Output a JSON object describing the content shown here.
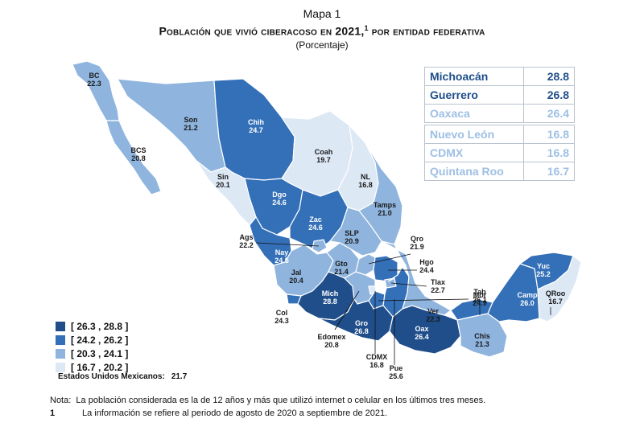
{
  "header": {
    "map_label": "Mapa 1",
    "title": "Población que vivió ciberacoso en 2021,",
    "title_sup": "1",
    "title_tail": " por entidad federativa",
    "subtitle": "(Porcentaje)"
  },
  "colors": {
    "q1": "#1f4e8a",
    "q2": "#3470b8",
    "q3": "#8fb4de",
    "q4": "#dde8f5",
    "top_text": "#1f4e8a",
    "bottom_text": "#9dbfe4"
  },
  "ranking": {
    "top": [
      {
        "name": "Michoacán",
        "value": "28.8"
      },
      {
        "name": "Guerrero",
        "value": "26.8"
      },
      {
        "name": "Oaxaca",
        "value": "26.4"
      }
    ],
    "bottom": [
      {
        "name": "Nuevo León",
        "value": "16.8"
      },
      {
        "name": "CDMX",
        "value": "16.8"
      },
      {
        "name": "Quintana Roo",
        "value": "16.7"
      }
    ]
  },
  "legend": [
    {
      "label": "[ 26.3 , 28.8 ]",
      "color_key": "q1"
    },
    {
      "label": "[ 24.2 , 26.2 ]",
      "color_key": "q2"
    },
    {
      "label": "[ 20.3 , 24.1 ]",
      "color_key": "q3"
    },
    {
      "label": "[ 16.7 , 20.2 ]",
      "color_key": "q4"
    }
  ],
  "national": {
    "label": "Estados Unidos Mexicanos:",
    "value": "21.7"
  },
  "states": [
    {
      "id": "bc",
      "abbr": "BC",
      "value": "22.3",
      "class": "q3"
    },
    {
      "id": "bcs",
      "abbr": "BCS",
      "value": "20.8",
      "class": "q3"
    },
    {
      "id": "son",
      "abbr": "Son",
      "value": "21.2",
      "class": "q3"
    },
    {
      "id": "chih",
      "abbr": "Chih",
      "value": "24.7",
      "class": "q2"
    },
    {
      "id": "coah",
      "abbr": "Coah",
      "value": "19.7",
      "class": "q4"
    },
    {
      "id": "nl",
      "abbr": "NL",
      "value": "16.8",
      "class": "q4"
    },
    {
      "id": "tamps",
      "abbr": "Tamps",
      "value": "21.0",
      "class": "q3"
    },
    {
      "id": "sin",
      "abbr": "Sin",
      "value": "20.1",
      "class": "q4"
    },
    {
      "id": "dgo",
      "abbr": "Dgo",
      "value": "24.6",
      "class": "q2"
    },
    {
      "id": "zac",
      "abbr": "Zac",
      "value": "24.6",
      "class": "q2"
    },
    {
      "id": "slp",
      "abbr": "SLP",
      "value": "20.9",
      "class": "q3"
    },
    {
      "id": "ags",
      "abbr": "Ags",
      "value": "22.2",
      "class": "q3"
    },
    {
      "id": "nay",
      "abbr": "Nay",
      "value": "24.5",
      "class": "q2"
    },
    {
      "id": "jal",
      "abbr": "Jal",
      "value": "20.4",
      "class": "q3"
    },
    {
      "id": "gto",
      "abbr": "Gto",
      "value": "21.4",
      "class": "q3"
    },
    {
      "id": "qro",
      "abbr": "Qro",
      "value": "21.9",
      "class": "q3"
    },
    {
      "id": "hgo",
      "abbr": "Hgo",
      "value": "24.4",
      "class": "q2"
    },
    {
      "id": "col",
      "abbr": "Col",
      "value": "24.3",
      "class": "q2"
    },
    {
      "id": "mich",
      "abbr": "Mich",
      "value": "28.8",
      "class": "q1"
    },
    {
      "id": "edomex",
      "abbr": "Edomex",
      "value": "20.8",
      "class": "q3"
    },
    {
      "id": "cdmx",
      "abbr": "CDMX",
      "value": "16.8",
      "class": "q4"
    },
    {
      "id": "mor",
      "abbr": "Mor",
      "value": "24.9",
      "class": "q2"
    },
    {
      "id": "tlax",
      "abbr": "Tlax",
      "value": "22.7",
      "class": "q3"
    },
    {
      "id": "pue",
      "abbr": "Pue",
      "value": "25.6",
      "class": "q2"
    },
    {
      "id": "gro",
      "abbr": "Gro",
      "value": "26.8",
      "class": "q1"
    },
    {
      "id": "oax",
      "abbr": "Oax",
      "value": "26.4",
      "class": "q1"
    },
    {
      "id": "ver",
      "abbr": "Ver",
      "value": "22.3",
      "class": "q3"
    },
    {
      "id": "tab",
      "abbr": "Tab",
      "value": "26.1",
      "class": "q2"
    },
    {
      "id": "chis",
      "abbr": "Chis",
      "value": "21.3",
      "class": "q3"
    },
    {
      "id": "camp",
      "abbr": "Camp",
      "value": "26.0",
      "class": "q2"
    },
    {
      "id": "yuc",
      "abbr": "Yuc",
      "value": "25.2",
      "class": "q2"
    },
    {
      "id": "qroo",
      "abbr": "QRoo",
      "value": "16.7",
      "class": "q4"
    }
  ],
  "notes": {
    "note_label": "Nota:",
    "note_text": "La población considerada es la de 12 años y más que utilizó internet o celular en los últimos tres meses.",
    "footnote_ref": "1",
    "footnote_text": "La información se refiere al periodo de agosto de 2020 a septiembre de 2021."
  }
}
